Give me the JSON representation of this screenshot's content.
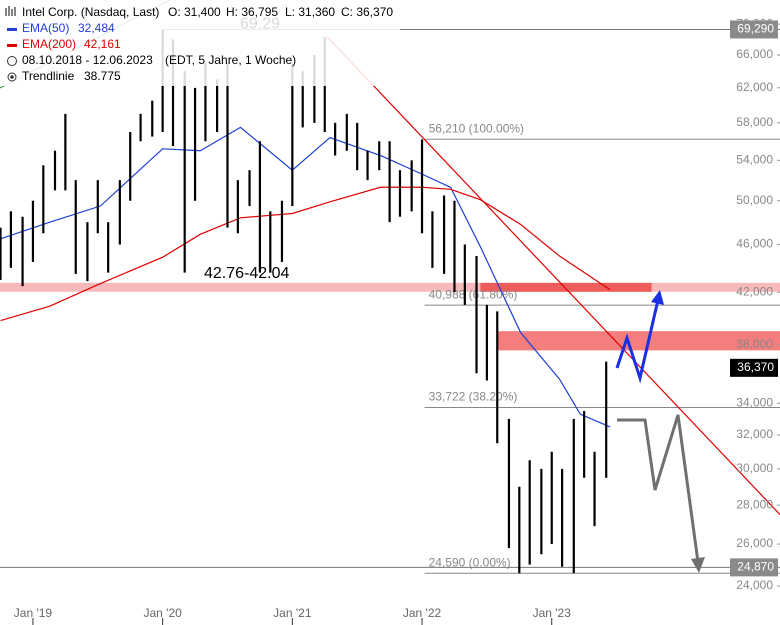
{
  "header": {
    "title": "Intel Corp. (Nasdaq, Last)",
    "ohlc": [
      "O: 31,400",
      "H: 36,795",
      "L: 31,360",
      "C: 36,370"
    ],
    "period": "08.10.2018 - 12.06.2023",
    "period_note": "(EDT, 5 Jahre, 1 Woche)"
  },
  "chart_data": {
    "type": "ohlc",
    "log_scale": true,
    "xlim": [
      2018.746,
      2024.76
    ],
    "xticks": [
      {
        "value": 2019,
        "label": "Jan '19"
      },
      {
        "value": 2020,
        "label": "Jan '20"
      },
      {
        "value": 2021,
        "label": "Jan '21"
      },
      {
        "value": 2022,
        "label": "Jan '22"
      },
      {
        "value": 2023,
        "label": "Jan '23"
      }
    ],
    "ylim": [
      23.46,
      73.29
    ],
    "yticks": [
      {
        "value": 24,
        "label": "24,000"
      },
      {
        "value": 26,
        "label": "26,000"
      },
      {
        "value": 28,
        "label": "28,000"
      },
      {
        "value": 30,
        "label": "30,000"
      },
      {
        "value": 32,
        "label": "32,000"
      },
      {
        "value": 34,
        "label": "34,000"
      },
      {
        "value": 38,
        "label": "38,000"
      },
      {
        "value": 42,
        "label": "42,000"
      },
      {
        "value": 46,
        "label": "46,000"
      },
      {
        "value": 50,
        "label": "50,000"
      },
      {
        "value": 54,
        "label": "54,000"
      },
      {
        "value": 58,
        "label": "58,000"
      },
      {
        "value": 62,
        "label": "62,000"
      },
      {
        "value": 66,
        "label": "66,000"
      },
      {
        "value": 70,
        "label": "70,000"
      }
    ],
    "price": {
      "name": "Intel Corp.",
      "color": "#000000",
      "x": [
        2018.75,
        2018.83,
        2018.92,
        2019,
        2019.08,
        2019.17,
        2019.25,
        2019.33,
        2019.42,
        2019.5,
        2019.58,
        2019.67,
        2019.75,
        2019.83,
        2019.92,
        2020,
        2020.08,
        2020.17,
        2020.25,
        2020.33,
        2020.42,
        2020.5,
        2020.58,
        2020.67,
        2020.75,
        2020.83,
        2020.92,
        2021,
        2021.08,
        2021.17,
        2021.25,
        2021.33,
        2021.42,
        2021.5,
        2021.58,
        2021.67,
        2021.75,
        2021.83,
        2021.92,
        2022,
        2022.08,
        2022.17,
        2022.25,
        2022.33,
        2022.42,
        2022.5,
        2022.58,
        2022.67,
        2022.75,
        2022.83,
        2022.92,
        2023,
        2023.08,
        2023.17,
        2023.25,
        2023.33,
        2023.42
      ],
      "low": [
        43,
        44,
        42.5,
        44.5,
        47,
        51,
        51,
        43.5,
        42.9,
        47,
        43.6,
        46,
        50,
        56,
        56.5,
        57,
        55.5,
        43.6,
        50,
        56,
        57,
        47.5,
        47,
        49.5,
        43.6,
        43.6,
        44.5,
        49.5,
        57.5,
        58,
        57,
        54.5,
        55,
        53,
        52,
        53,
        48,
        48.5,
        49,
        47,
        44,
        43.5,
        42,
        41,
        36,
        35.5,
        31.5,
        25.8,
        24.59,
        25,
        25.5,
        26,
        24.9,
        24.6,
        29.5,
        26.9,
        29.5
      ],
      "high": [
        47.5,
        49,
        48.5,
        50,
        53.5,
        55,
        59,
        52,
        48,
        52,
        48,
        52,
        57,
        59,
        60.5,
        69.29,
        68,
        64,
        62,
        65,
        63,
        65,
        52,
        53,
        56,
        49,
        50,
        64.9,
        64,
        66,
        68.3,
        58,
        59,
        58,
        55,
        56,
        56,
        53,
        54,
        56.2,
        49,
        50.5,
        50,
        46,
        45,
        41,
        40.5,
        33,
        29,
        30.5,
        30,
        31,
        30,
        33,
        33.5,
        31,
        36.8
      ]
    },
    "series": [
      {
        "name": "EMA(50)",
        "color": "#1f3fd6",
        "legend_value": "32,484",
        "x": [
          2018.75,
          2019.13,
          2019.52,
          2020,
          2020.29,
          2020.6,
          2021,
          2021.29,
          2021.68,
          2022,
          2022.22,
          2022.45,
          2022.76,
          2023.06,
          2023.22,
          2023.45
        ],
        "values": [
          46.5,
          48,
          49.5,
          55.2,
          55,
          57.5,
          53,
          56.4,
          54.5,
          52.6,
          51.3,
          45.8,
          38.9,
          35.6,
          33.3,
          32.5
        ]
      },
      {
        "name": "EMA(200)",
        "color": "#e00000",
        "legend_value": "42,161",
        "x": [
          2018.75,
          2019.13,
          2019.52,
          2020,
          2020.29,
          2020.6,
          2021,
          2021.29,
          2021.68,
          2022,
          2022.22,
          2022.45,
          2022.76,
          2023.06,
          2023.45
        ],
        "values": [
          39.8,
          40.9,
          42.7,
          44.9,
          46.9,
          48.4,
          48.8,
          49.9,
          51.3,
          51.3,
          51.1,
          50.1,
          47.8,
          45,
          42.2
        ]
      },
      {
        "name": "Trendlinie",
        "color": "#e00000",
        "legend_value": "38.775",
        "x": [
          2021.27,
          2024.76
        ],
        "values": [
          68.3,
          27.5
        ]
      }
    ],
    "levels": [
      {
        "value": 56.21,
        "label": "56,210 (100.00%)",
        "start": 2022.02
      },
      {
        "value": 40.988,
        "label": "40,988 (61.80%)",
        "start": 2022.02
      },
      {
        "value": 33.722,
        "label": "33,722 (38.20%)",
        "start": 2022.02
      },
      {
        "value": 24.59,
        "label": "24,590 (0.00%)",
        "start": 2022.02
      }
    ],
    "zones": [
      {
        "low": 42.04,
        "high": 42.76,
        "label": "42.76-42.04",
        "color": "#f7b9b9"
      },
      {
        "low": 42.04,
        "high": 42.76,
        "color": "#ef5c5c",
        "start": 2022.45,
        "end": 2023.77
      },
      {
        "low": 37.6,
        "high": 39.0,
        "color": "#f47d7d",
        "start": 2022.58
      }
    ],
    "price_lines": [
      {
        "value": 69.29,
        "label": "69,290",
        "note": "69.29",
        "color": "#8a8a8a",
        "start": 2020
      },
      {
        "value": 36.37,
        "label": "36,370",
        "color": "#000000"
      },
      {
        "value": 24.87,
        "label": "24,870",
        "color": "#8a8a8a"
      }
    ]
  }
}
